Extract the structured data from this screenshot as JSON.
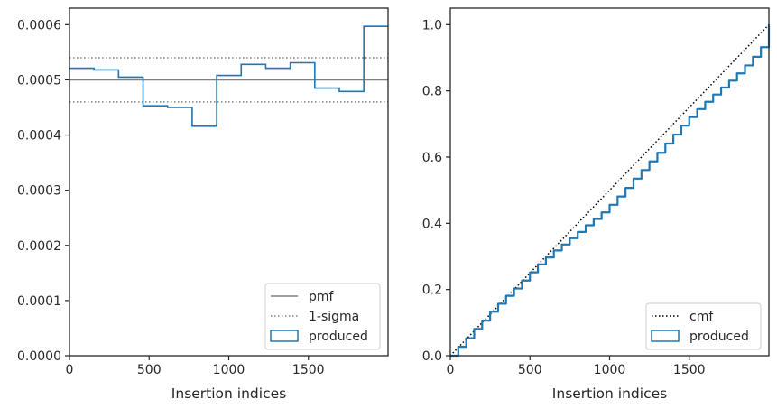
{
  "chart_data": [
    {
      "type": "line",
      "xlabel": "Insertion indices",
      "ylabel": "",
      "xlim": [
        0,
        2000
      ],
      "ylim": [
        0,
        0.00063
      ],
      "x_ticks": [
        0,
        500,
        1000,
        1500
      ],
      "x_tick_labels": [
        "0",
        "500",
        "1000",
        "1500"
      ],
      "y_ticks": [
        0,
        0.0001,
        0.0002,
        0.0003,
        0.0004,
        0.0005,
        0.0006
      ],
      "y_tick_labels": [
        "0.0000",
        "0.0001",
        "0.0002",
        "0.0003",
        "0.0004",
        "0.0005",
        "0.0006"
      ],
      "grid": false,
      "legend_position": "bottom-right",
      "series": [
        {
          "name": "pmf",
          "kind": "hline",
          "y": 0.0005,
          "color": "#808080",
          "style": "solid"
        },
        {
          "name": "1-sigma",
          "kind": "hlines",
          "y": [
            0.00046,
            0.00054
          ],
          "color": "#808080",
          "style": "dotted"
        },
        {
          "name": "produced",
          "kind": "step-histogram",
          "color": "#1f77b4",
          "bin_edges": [
            0,
            154,
            308,
            462,
            616,
            770,
            924,
            1078,
            1232,
            1386,
            1540,
            1694,
            1848,
            2000
          ],
          "values": [
            0.000521,
            0.000518,
            0.000505,
            0.000453,
            0.00045,
            0.000416,
            0.000508,
            0.000528,
            0.000521,
            0.000531,
            0.000485,
            0.000479,
            0.000597
          ]
        }
      ]
    },
    {
      "type": "line",
      "xlabel": "Insertion indices",
      "ylabel": "",
      "xlim": [
        0,
        2000
      ],
      "ylim": [
        0,
        1.05
      ],
      "x_ticks": [
        0,
        500,
        1000,
        1500
      ],
      "x_tick_labels": [
        "0",
        "500",
        "1000",
        "1500"
      ],
      "y_ticks": [
        0,
        0.2,
        0.4,
        0.6,
        0.8,
        1.0
      ],
      "y_tick_labels": [
        "0.0",
        "0.2",
        "0.4",
        "0.6",
        "0.8",
        "1.0"
      ],
      "grid": false,
      "legend_position": "bottom-right",
      "series": [
        {
          "name": "cmf",
          "kind": "line",
          "color": "#000000",
          "style": "dotted",
          "x": [
            0,
            2000
          ],
          "y": [
            0,
            1.0
          ]
        },
        {
          "name": "produced",
          "kind": "step-line",
          "color": "#1f77b4",
          "x": [
            0,
            50,
            100,
            150,
            200,
            250,
            300,
            350,
            400,
            450,
            500,
            550,
            600,
            650,
            700,
            750,
            800,
            850,
            900,
            950,
            1000,
            1050,
            1100,
            1150,
            1200,
            1250,
            1300,
            1350,
            1400,
            1450,
            1500,
            1550,
            1600,
            1650,
            1700,
            1750,
            1800,
            1850,
            1900,
            1950,
            2000
          ],
          "y": [
            0,
            0.027,
            0.053,
            0.081,
            0.106,
            0.133,
            0.157,
            0.181,
            0.203,
            0.227,
            0.252,
            0.276,
            0.297,
            0.318,
            0.336,
            0.355,
            0.374,
            0.394,
            0.413,
            0.433,
            0.456,
            0.481,
            0.507,
            0.535,
            0.561,
            0.587,
            0.613,
            0.641,
            0.668,
            0.695,
            0.721,
            0.745,
            0.767,
            0.789,
            0.81,
            0.831,
            0.853,
            0.877,
            0.903,
            0.932,
            1.0
          ]
        }
      ]
    }
  ]
}
